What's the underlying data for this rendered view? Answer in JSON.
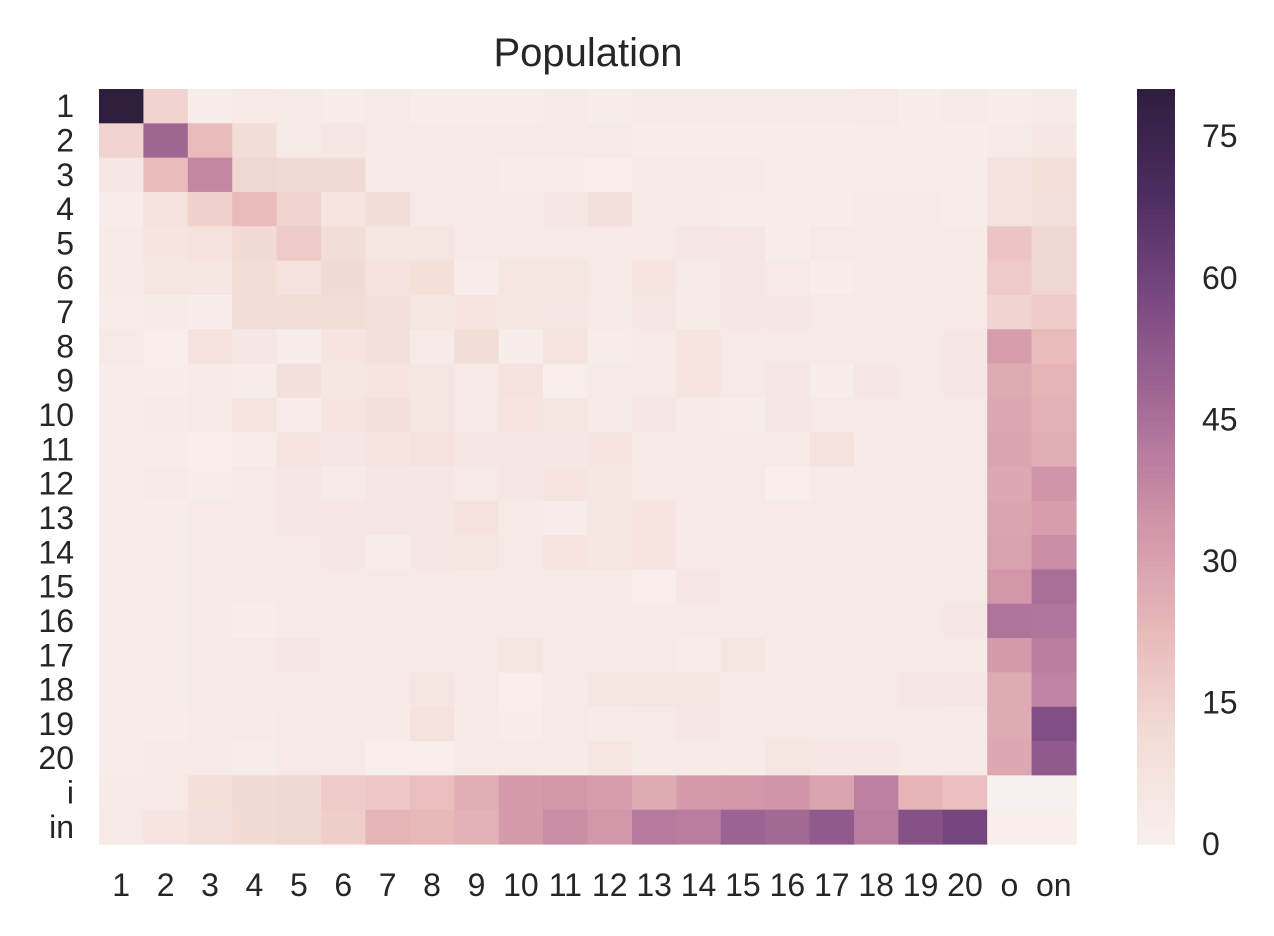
{
  "chart_data": {
    "type": "heatmap",
    "title": "Population",
    "xlabel": "",
    "ylabel": "",
    "x_categories": [
      "1",
      "2",
      "3",
      "4",
      "5",
      "6",
      "7",
      "8",
      "9",
      "10",
      "11",
      "12",
      "13",
      "14",
      "15",
      "16",
      "17",
      "18",
      "19",
      "20",
      "o",
      "on"
    ],
    "y_categories": [
      "1",
      "2",
      "3",
      "4",
      "5",
      "6",
      "7",
      "8",
      "9",
      "10",
      "11",
      "12",
      "13",
      "14",
      "15",
      "16",
      "17",
      "18",
      "19",
      "20",
      "i",
      "in"
    ],
    "values": [
      [
        80,
        14,
        2,
        4,
        3,
        2,
        3,
        2,
        2,
        2,
        3,
        2,
        3,
        3,
        3,
        3,
        3,
        4,
        2,
        3,
        2,
        3
      ],
      [
        14,
        48,
        22,
        11,
        3,
        5,
        3,
        3,
        3,
        3,
        3,
        4,
        2,
        2,
        2,
        2,
        2,
        2,
        2,
        2,
        3,
        5
      ],
      [
        5,
        22,
        38,
        13,
        12,
        12,
        3,
        4,
        3,
        2,
        2,
        1,
        3,
        3,
        3,
        2,
        2,
        2,
        2,
        2,
        8,
        10
      ],
      [
        2,
        8,
        15,
        22,
        14,
        7,
        11,
        4,
        4,
        3,
        5,
        9,
        3,
        3,
        2,
        2,
        2,
        3,
        3,
        2,
        8,
        9
      ],
      [
        3,
        7,
        8,
        12,
        17,
        11,
        6,
        6,
        4,
        4,
        4,
        4,
        4,
        5,
        5,
        2,
        4,
        3,
        3,
        3,
        19,
        13
      ],
      [
        3,
        6,
        6,
        11,
        8,
        12,
        8,
        10,
        2,
        6,
        6,
        4,
        7,
        3,
        5,
        4,
        2,
        3,
        3,
        3,
        17,
        13
      ],
      [
        2,
        3,
        2,
        11,
        11,
        11,
        9,
        6,
        7,
        6,
        5,
        3,
        5,
        3,
        5,
        5,
        4,
        4,
        4,
        4,
        14,
        17
      ],
      [
        4,
        1,
        8,
        5,
        2,
        7,
        9,
        3,
        11,
        2,
        7,
        2,
        4,
        7,
        4,
        4,
        4,
        3,
        4,
        5,
        31,
        22
      ],
      [
        2,
        2,
        3,
        2,
        9,
        6,
        7,
        6,
        4,
        8,
        1,
        4,
        4,
        7,
        4,
        5,
        2,
        5,
        4,
        5,
        27,
        24
      ],
      [
        2,
        3,
        4,
        7,
        2,
        7,
        9,
        6,
        4,
        7,
        6,
        3,
        5,
        3,
        2,
        5,
        4,
        4,
        4,
        4,
        28,
        25
      ],
      [
        2,
        2,
        1,
        2,
        7,
        5,
        7,
        8,
        5,
        5,
        5,
        7,
        4,
        3,
        4,
        4,
        8,
        4,
        4,
        4,
        29,
        26
      ],
      [
        2,
        3,
        2,
        4,
        5,
        3,
        5,
        5,
        4,
        5,
        7,
        6,
        4,
        3,
        4,
        1,
        3,
        4,
        4,
        4,
        28,
        34
      ],
      [
        2,
        2,
        4,
        4,
        5,
        5,
        5,
        5,
        8,
        3,
        2,
        6,
        7,
        4,
        4,
        4,
        4,
        4,
        4,
        4,
        29,
        31
      ],
      [
        2,
        2,
        4,
        4,
        4,
        5,
        2,
        5,
        6,
        4,
        7,
        6,
        7,
        4,
        3,
        4,
        4,
        4,
        4,
        4,
        30,
        36
      ],
      [
        2,
        2,
        4,
        3,
        3,
        4,
        4,
        4,
        4,
        4,
        4,
        4,
        1,
        5,
        4,
        4,
        4,
        4,
        4,
        4,
        33,
        45
      ],
      [
        2,
        2,
        4,
        2,
        3,
        4,
        3,
        4,
        4,
        4,
        4,
        4,
        3,
        3,
        4,
        4,
        4,
        4,
        4,
        5,
        44,
        43
      ],
      [
        2,
        2,
        4,
        4,
        5,
        4,
        4,
        4,
        4,
        6,
        4,
        4,
        4,
        2,
        6,
        3,
        4,
        4,
        4,
        4,
        32,
        41
      ],
      [
        2,
        2,
        4,
        4,
        4,
        4,
        4,
        6,
        4,
        1,
        4,
        6,
        6,
        6,
        4,
        4,
        4,
        4,
        5,
        5,
        27,
        39
      ],
      [
        2,
        2,
        3,
        3,
        4,
        3,
        3,
        8,
        3,
        2,
        4,
        3,
        4,
        5,
        3,
        4,
        3,
        3,
        4,
        3,
        27,
        56
      ],
      [
        2,
        3,
        3,
        2,
        4,
        4,
        1,
        1,
        3,
        4,
        3,
        6,
        3,
        3,
        3,
        6,
        5,
        5,
        4,
        3,
        28,
        52
      ],
      [
        3,
        4,
        10,
        12,
        13,
        17,
        18,
        21,
        26,
        32,
        33,
        31,
        27,
        32,
        33,
        34,
        29,
        40,
        24,
        21,
        0,
        0
      ],
      [
        4,
        7,
        9,
        12,
        13,
        16,
        24,
        23,
        25,
        32,
        36,
        33,
        42,
        41,
        49,
        47,
        52,
        41,
        55,
        59,
        1,
        1
      ]
    ],
    "vmin": 0,
    "vmax": 80,
    "colorbar_ticks": [
      "0",
      "15",
      "30",
      "45",
      "60",
      "75"
    ],
    "colormap_stops": [
      "#f8f0ee",
      "#f3dcd6",
      "#e8b8b9",
      "#cf94a8",
      "#a86d98",
      "#7d4a83",
      "#4e2d62",
      "#2d1e3e"
    ],
    "grid": false
  }
}
